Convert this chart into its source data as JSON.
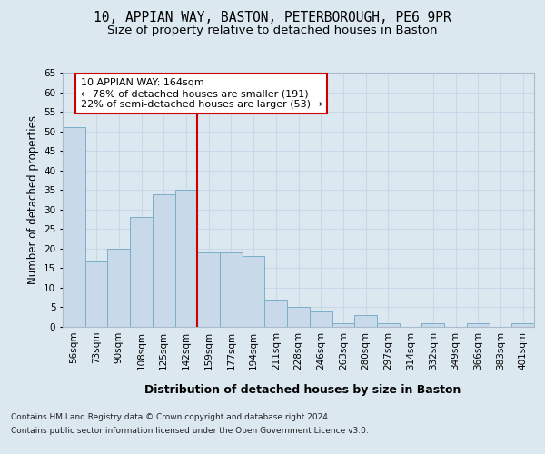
{
  "title_line1": "10, APPIAN WAY, BASTON, PETERBOROUGH, PE6 9PR",
  "title_line2": "Size of property relative to detached houses in Baston",
  "xlabel": "Distribution of detached houses by size in Baston",
  "ylabel": "Number of detached properties",
  "categories": [
    "56sqm",
    "73sqm",
    "90sqm",
    "108sqm",
    "125sqm",
    "142sqm",
    "159sqm",
    "177sqm",
    "194sqm",
    "211sqm",
    "228sqm",
    "246sqm",
    "263sqm",
    "280sqm",
    "297sqm",
    "314sqm",
    "332sqm",
    "349sqm",
    "366sqm",
    "383sqm",
    "401sqm"
  ],
  "values": [
    51,
    17,
    20,
    28,
    34,
    35,
    19,
    19,
    18,
    7,
    5,
    4,
    1,
    3,
    1,
    0,
    1,
    0,
    1,
    0,
    1
  ],
  "bar_color": "#c8daea",
  "bar_edge_color": "#7aafc8",
  "annotation_line1": "10 APPIAN WAY: 164sqm",
  "annotation_line2": "← 78% of detached houses are smaller (191)",
  "annotation_line3": "22% of semi-detached houses are larger (53) →",
  "annotation_box_color": "#ffffff",
  "annotation_box_edge": "#cc0000",
  "vline_color": "#cc0000",
  "ylim": [
    0,
    65
  ],
  "yticks": [
    0,
    5,
    10,
    15,
    20,
    25,
    30,
    35,
    40,
    45,
    50,
    55,
    60,
    65
  ],
  "grid_color": "#c8d8e8",
  "background_color": "#dce8f0",
  "footer_line1": "Contains HM Land Registry data © Crown copyright and database right 2024.",
  "footer_line2": "Contains public sector information licensed under the Open Government Licence v3.0.",
  "title_fontsize": 10.5,
  "subtitle_fontsize": 9.5,
  "xlabel_fontsize": 9,
  "ylabel_fontsize": 8.5,
  "tick_fontsize": 7.5,
  "annotation_fontsize": 8,
  "footer_fontsize": 6.5
}
